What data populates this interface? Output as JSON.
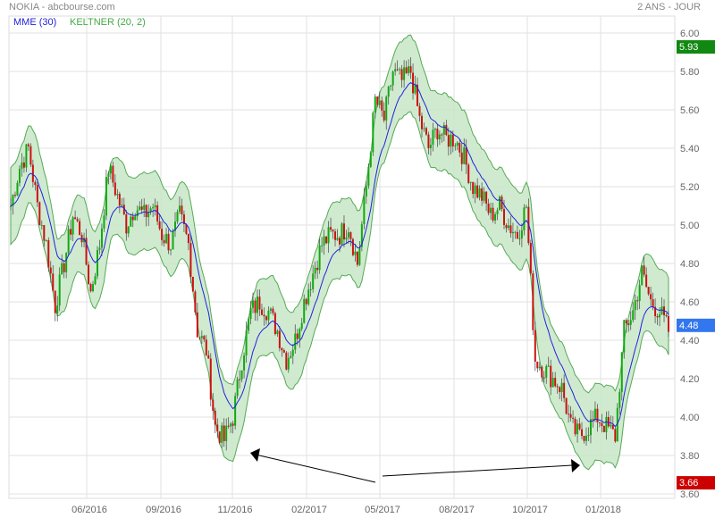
{
  "header": {
    "title": "NOKIA - abcbourse.com",
    "period": "2 ANS - JOUR"
  },
  "legend": [
    {
      "label": "MME (30)",
      "color": "#2222dd"
    },
    {
      "label": "KELTNER (20, 2)",
      "color": "#44aa44"
    }
  ],
  "chart_data": {
    "type": "candlestick",
    "title": "NOKIA - abcbourse.com",
    "ylim": [
      3.6,
      6.1
    ],
    "y_ticks": [
      "6.00",
      "5.80",
      "5.60",
      "5.40",
      "5.20",
      "5.00",
      "4.80",
      "4.60",
      "4.40",
      "4.20",
      "4.00",
      "3.80",
      "3.60"
    ],
    "x_ticks": [
      "06/2016",
      "09/2016",
      "11/2016",
      "02/2017",
      "05/2017",
      "08/2017",
      "10/2017",
      "01/2018"
    ],
    "grid": true,
    "closes": [
      5.1,
      5.3,
      5.4,
      5.1,
      4.9,
      4.58,
      4.8,
      5.05,
      4.95,
      4.65,
      4.9,
      5.3,
      5.15,
      5.0,
      5.1,
      5.05,
      5.1,
      4.95,
      4.9,
      5.05,
      4.9,
      4.45,
      4.35,
      3.95,
      3.88,
      4.0,
      4.3,
      4.55,
      4.6,
      4.55,
      4.45,
      4.3,
      4.4,
      4.6,
      4.75,
      4.9,
      4.95,
      4.95,
      5.0,
      4.8,
      5.2,
      5.65,
      5.55,
      5.8,
      5.75,
      5.8,
      5.55,
      5.4,
      5.5,
      5.45,
      5.45,
      5.35,
      5.2,
      5.15,
      5.05,
      5.1,
      5.0,
      4.95,
      5.1,
      4.3,
      4.25,
      4.2,
      4.15,
      3.95,
      3.9,
      3.95,
      4.0,
      3.95,
      3.9,
      4.45,
      4.55,
      4.75,
      4.6,
      4.55,
      4.45
    ],
    "indicators": [
      "MME (30)",
      "KELTNER (20, 2)"
    ],
    "markers": {
      "high": "5.93",
      "last": "4.48",
      "low": "3.66"
    },
    "colors": {
      "up": "#11aa11",
      "down": "#cc1111",
      "mme": "#2222dd",
      "band_fill": "#c8e6c8",
      "band_line": "#55aa55",
      "high_bg": "#118811",
      "last_bg": "#3377ee",
      "low_bg": "#cc0000"
    }
  }
}
